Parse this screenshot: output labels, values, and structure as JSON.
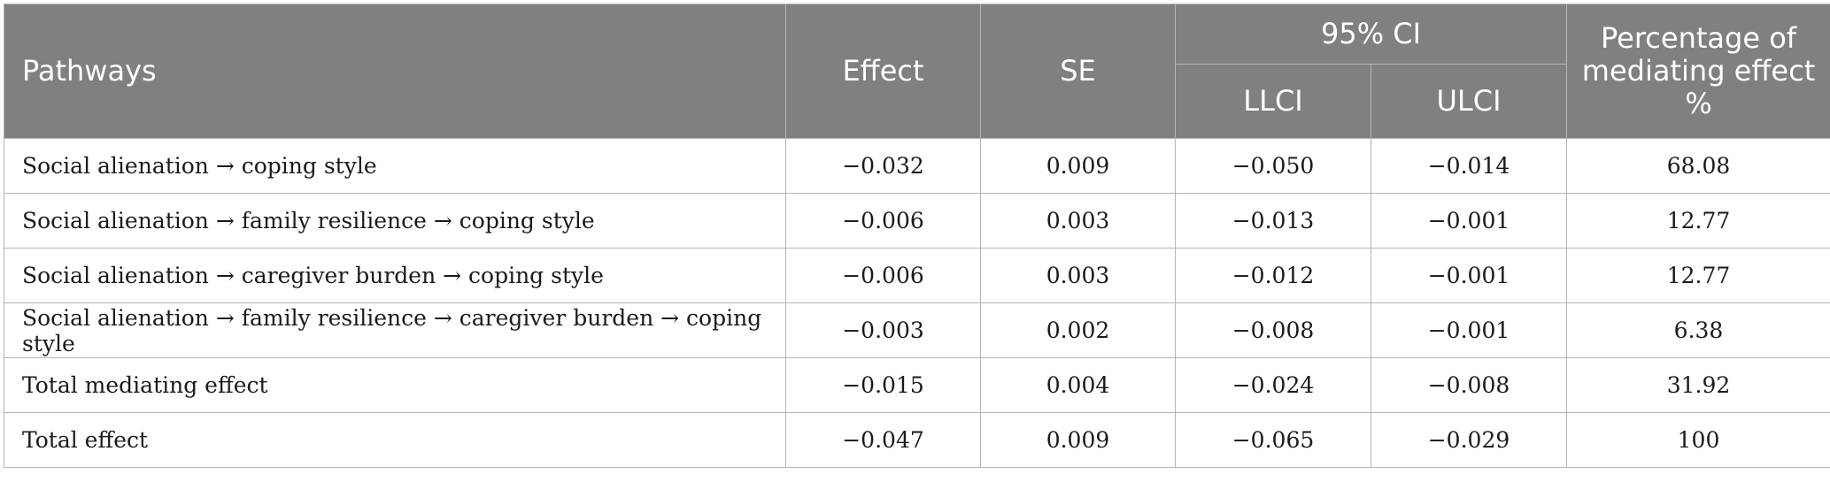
{
  "table": {
    "headers": {
      "pathways": "Pathways",
      "effect": "Effect",
      "se": "SE",
      "ci": "95% CI",
      "llci": "LLCI",
      "ulci": "ULCI",
      "percentage": "Percentage of mediating effect %"
    },
    "rows": [
      {
        "pathway": "Social alienation → coping style",
        "effect": "−0.032",
        "se": "0.009",
        "llci": "−0.050",
        "ulci": "−0.014",
        "percentage": "68.08"
      },
      {
        "pathway": "Social alienation → family resilience → coping style",
        "effect": "−0.006",
        "se": "0.003",
        "llci": "−0.013",
        "ulci": "−0.001",
        "percentage": "12.77"
      },
      {
        "pathway": "Social alienation → caregiver burden → coping style",
        "effect": "−0.006",
        "se": "0.003",
        "llci": "−0.012",
        "ulci": "−0.001",
        "percentage": "12.77"
      },
      {
        "pathway": "Social alienation → family resilience → caregiver burden → coping style",
        "effect": "−0.003",
        "se": "0.002",
        "llci": "−0.008",
        "ulci": "−0.001",
        "percentage": "6.38"
      },
      {
        "pathway": "Total mediating effect",
        "effect": "−0.015",
        "se": "0.004",
        "llci": "−0.024",
        "ulci": "−0.008",
        "percentage": "31.92"
      },
      {
        "pathway": "Total effect",
        "effect": "−0.047",
        "se": "0.009",
        "llci": "−0.065",
        "ulci": "−0.029",
        "percentage": "100"
      }
    ]
  }
}
